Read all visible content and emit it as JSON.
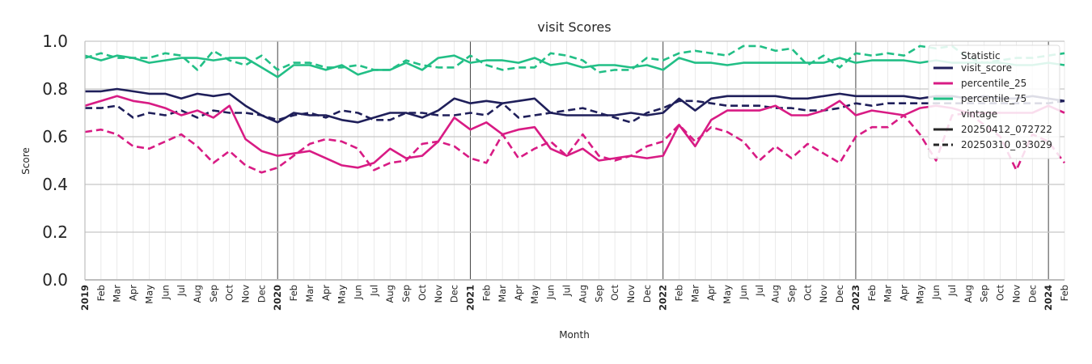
{
  "chart_data": {
    "type": "line",
    "title": "visit Scores",
    "xlabel": "Month",
    "ylabel": "Score",
    "ylim": [
      0.0,
      1.0
    ],
    "yticks": [
      "0.0",
      "0.2",
      "0.4",
      "0.6",
      "0.8",
      "1.0"
    ],
    "x_start": "2019-01",
    "x_end": "2024-02",
    "x": [
      "2019",
      "Feb",
      "Mar",
      "Apr",
      "May",
      "Jun",
      "Jul",
      "Aug",
      "Sep",
      "Oct",
      "Nov",
      "Dec",
      "2020",
      "Feb",
      "Mar",
      "Apr",
      "May",
      "Jun",
      "Jul",
      "Aug",
      "Sep",
      "Oct",
      "Nov",
      "Dec",
      "2021",
      "Feb",
      "Mar",
      "Apr",
      "May",
      "Jun",
      "Jul",
      "Aug",
      "Sep",
      "Oct",
      "Nov",
      "Dec",
      "2022",
      "Feb",
      "Mar",
      "Apr",
      "May",
      "Jun",
      "Jul",
      "Aug",
      "Sep",
      "Oct",
      "Nov",
      "Dec",
      "2023",
      "Feb",
      "Mar",
      "Apr",
      "May",
      "Jun",
      "Jul",
      "Aug",
      "Sep",
      "Oct",
      "Nov",
      "Dec",
      "2024",
      "Feb"
    ],
    "grid": true,
    "legend_position": "top-right",
    "legend": {
      "title_statistic": "Statistic",
      "title_vintage": "vintage",
      "statistics": [
        {
          "name": "visit_score",
          "color": "#1f1f5a"
        },
        {
          "name": "percentile_25",
          "color": "#d81b84"
        },
        {
          "name": "percentile_75",
          "color": "#22bf86"
        }
      ],
      "vintages": [
        {
          "name": "20250412_072722",
          "style": "solid"
        },
        {
          "name": "20250310_033029",
          "style": "dashed"
        }
      ]
    },
    "series": [
      {
        "statistic": "visit_score",
        "vintage": "20250412_072722",
        "color": "#1f1f5a",
        "style": "solid",
        "values": [
          0.79,
          0.79,
          0.8,
          0.79,
          0.78,
          0.78,
          0.76,
          0.78,
          0.77,
          0.78,
          0.73,
          0.69,
          0.66,
          0.7,
          0.69,
          0.69,
          0.67,
          0.66,
          0.68,
          0.7,
          0.7,
          0.68,
          0.71,
          0.76,
          0.74,
          0.75,
          0.74,
          0.75,
          0.76,
          0.7,
          0.69,
          0.69,
          0.69,
          0.69,
          0.7,
          0.69,
          0.7,
          0.76,
          0.71,
          0.76,
          0.77,
          0.77,
          0.77,
          0.77,
          0.76,
          0.76,
          0.77,
          0.78,
          0.77,
          0.77,
          0.77,
          0.77,
          0.76,
          0.77,
          0.77,
          0.76,
          0.77,
          0.76,
          0.76,
          0.77,
          0.76,
          0.75
        ]
      },
      {
        "statistic": "visit_score",
        "vintage": "20250310_033029",
        "color": "#1f1f5a",
        "style": "dashed",
        "values": [
          0.72,
          0.72,
          0.73,
          0.68,
          0.7,
          0.69,
          0.71,
          0.68,
          0.71,
          0.7,
          0.7,
          0.69,
          0.67,
          0.69,
          0.7,
          0.68,
          0.71,
          0.7,
          0.67,
          0.67,
          0.7,
          0.7,
          0.69,
          0.69,
          0.7,
          0.69,
          0.74,
          0.68,
          0.69,
          0.7,
          0.71,
          0.72,
          0.7,
          0.68,
          0.66,
          0.7,
          0.72,
          0.75,
          0.75,
          0.74,
          0.73,
          0.73,
          0.73,
          0.72,
          0.72,
          0.71,
          0.71,
          0.72,
          0.74,
          0.73,
          0.74,
          0.74,
          0.74,
          0.74,
          0.74,
          0.74,
          0.74,
          0.74,
          0.74,
          0.74,
          0.74,
          0.75
        ]
      },
      {
        "statistic": "percentile_25",
        "vintage": "20250412_072722",
        "color": "#d81b84",
        "style": "solid",
        "values": [
          0.73,
          0.75,
          0.77,
          0.75,
          0.74,
          0.72,
          0.69,
          0.71,
          0.68,
          0.73,
          0.59,
          0.54,
          0.52,
          0.53,
          0.54,
          0.51,
          0.48,
          0.47,
          0.49,
          0.55,
          0.51,
          0.52,
          0.58,
          0.68,
          0.63,
          0.66,
          0.61,
          0.63,
          0.64,
          0.55,
          0.52,
          0.55,
          0.5,
          0.51,
          0.52,
          0.51,
          0.52,
          0.65,
          0.56,
          0.67,
          0.71,
          0.71,
          0.71,
          0.73,
          0.69,
          0.69,
          0.71,
          0.75,
          0.69,
          0.71,
          0.7,
          0.69,
          0.72,
          0.73,
          0.72,
          0.7,
          0.7,
          0.7,
          0.7,
          0.7,
          0.73,
          0.7
        ]
      },
      {
        "statistic": "percentile_25",
        "vintage": "20250310_033029",
        "color": "#d81b84",
        "style": "dashed",
        "values": [
          0.62,
          0.63,
          0.61,
          0.56,
          0.55,
          0.58,
          0.61,
          0.56,
          0.49,
          0.54,
          0.48,
          0.45,
          0.47,
          0.52,
          0.57,
          0.59,
          0.58,
          0.55,
          0.46,
          0.49,
          0.5,
          0.57,
          0.58,
          0.56,
          0.51,
          0.49,
          0.61,
          0.51,
          0.55,
          0.58,
          0.52,
          0.61,
          0.52,
          0.5,
          0.52,
          0.56,
          0.58,
          0.65,
          0.58,
          0.64,
          0.62,
          0.58,
          0.5,
          0.56,
          0.51,
          0.57,
          0.53,
          0.49,
          0.6,
          0.64,
          0.64,
          0.69,
          0.61,
          0.5,
          0.69,
          0.7,
          0.65,
          0.6,
          0.46,
          0.61,
          0.58,
          0.49
        ]
      },
      {
        "statistic": "percentile_75",
        "vintage": "20250412_072722",
        "color": "#22bf86",
        "style": "solid",
        "values": [
          0.94,
          0.92,
          0.94,
          0.93,
          0.91,
          0.92,
          0.93,
          0.93,
          0.92,
          0.93,
          0.93,
          0.89,
          0.85,
          0.9,
          0.9,
          0.88,
          0.9,
          0.86,
          0.88,
          0.88,
          0.91,
          0.88,
          0.93,
          0.94,
          0.91,
          0.92,
          0.92,
          0.91,
          0.93,
          0.9,
          0.91,
          0.89,
          0.9,
          0.9,
          0.89,
          0.9,
          0.88,
          0.93,
          0.91,
          0.91,
          0.9,
          0.91,
          0.91,
          0.91,
          0.91,
          0.91,
          0.91,
          0.93,
          0.91,
          0.92,
          0.92,
          0.92,
          0.91,
          0.92,
          0.91,
          0.91,
          0.91,
          0.91,
          0.9,
          0.9,
          0.91,
          0.9
        ]
      },
      {
        "statistic": "percentile_75",
        "vintage": "20250310_033029",
        "color": "#22bf86",
        "style": "dashed",
        "values": [
          0.93,
          0.95,
          0.93,
          0.93,
          0.93,
          0.95,
          0.94,
          0.88,
          0.96,
          0.92,
          0.9,
          0.94,
          0.88,
          0.91,
          0.91,
          0.89,
          0.89,
          0.9,
          0.88,
          0.88,
          0.92,
          0.9,
          0.89,
          0.89,
          0.94,
          0.9,
          0.88,
          0.89,
          0.89,
          0.95,
          0.94,
          0.92,
          0.87,
          0.88,
          0.88,
          0.93,
          0.92,
          0.95,
          0.96,
          0.95,
          0.94,
          0.98,
          0.98,
          0.96,
          0.97,
          0.9,
          0.94,
          0.89,
          0.95,
          0.94,
          0.95,
          0.94,
          0.98,
          0.97,
          0.98,
          0.93,
          0.91,
          0.92,
          0.93,
          0.93,
          0.94,
          0.95
        ]
      }
    ]
  }
}
